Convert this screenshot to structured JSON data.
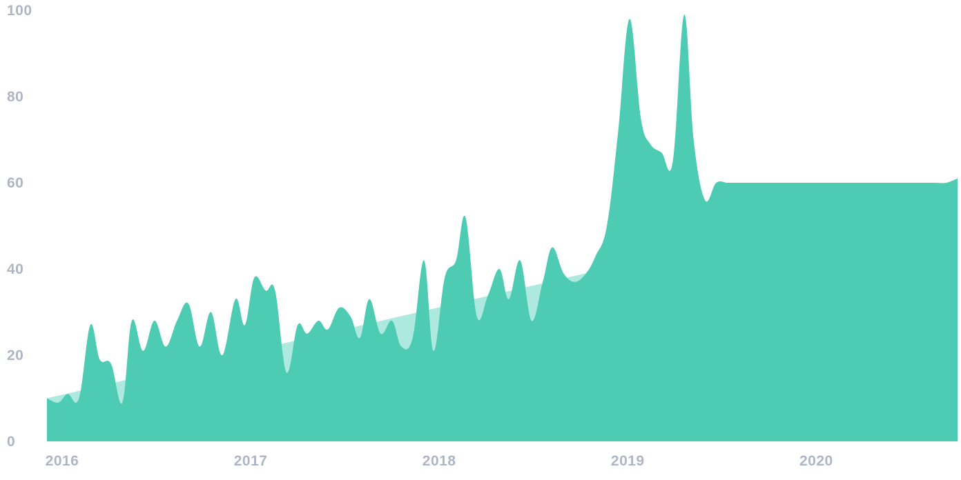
{
  "chart_data": {
    "type": "area",
    "title": "",
    "xlabel": "",
    "ylabel": "",
    "ylim": [
      0,
      100
    ],
    "xlim": [
      2016.0,
      2020.83
    ],
    "grid": false,
    "y_ticks": [
      {
        "value": 0,
        "label": "0"
      },
      {
        "value": 20,
        "label": "20"
      },
      {
        "value": 40,
        "label": "40"
      },
      {
        "value": 60,
        "label": "60"
      },
      {
        "value": 80,
        "label": "80"
      },
      {
        "value": 100,
        "label": "100"
      }
    ],
    "x_ticks": [
      {
        "value": 2016.0,
        "label": "2016"
      },
      {
        "value": 2017.0,
        "label": "2017"
      },
      {
        "value": 2018.0,
        "label": "2018"
      },
      {
        "value": 2019.0,
        "label": "2019"
      },
      {
        "value": 2020.0,
        "label": "2020"
      }
    ],
    "series": [
      {
        "role": "trend",
        "color": "#ade9de",
        "x": [
          2016.0,
          2020.83
        ],
        "values": [
          10,
          59
        ]
      },
      {
        "role": "interest",
        "color": "#4ecbb3",
        "x": [
          2016.0,
          2016.06,
          2016.11,
          2016.17,
          2016.23,
          2016.28,
          2016.34,
          2016.4,
          2016.45,
          2016.51,
          2016.57,
          2016.63,
          2016.69,
          2016.75,
          2016.81,
          2016.87,
          2016.93,
          2017.0,
          2017.05,
          2017.1,
          2017.16,
          2017.21,
          2017.27,
          2017.33,
          2017.38,
          2017.44,
          2017.49,
          2017.55,
          2017.61,
          2017.66,
          2017.71,
          2017.77,
          2017.83,
          2017.88,
          2017.94,
          2018.0,
          2018.05,
          2018.11,
          2018.17,
          2018.22,
          2018.28,
          2018.34,
          2018.4,
          2018.45,
          2018.51,
          2018.57,
          2018.63,
          2018.68,
          2018.74,
          2018.8,
          2018.86,
          2018.91,
          2018.97,
          2019.03,
          2019.09,
          2019.15,
          2019.2,
          2019.26,
          2019.32,
          2019.38,
          2019.43,
          2019.49,
          2019.55,
          2019.61,
          2019.67,
          2019.72,
          2019.78,
          2019.84,
          2019.9,
          2019.96,
          2020.02,
          2020.07,
          2020.13,
          2020.19,
          2020.25,
          2020.3,
          2020.36,
          2020.42,
          2020.48,
          2020.54,
          2020.59,
          2020.65,
          2020.71,
          2020.77,
          2020.83
        ],
        "values": [
          10,
          9,
          11,
          10,
          27,
          19,
          18,
          9,
          28,
          21,
          28,
          22,
          28,
          32,
          22,
          30,
          20,
          33,
          27,
          38,
          35,
          35,
          16,
          27,
          25,
          28,
          26,
          31,
          29,
          24,
          33,
          25,
          28,
          22,
          24,
          42,
          21,
          38,
          42,
          52,
          29,
          34,
          40,
          33,
          42,
          28,
          37,
          45,
          39,
          37,
          39,
          43,
          50,
          72,
          98,
          75,
          69,
          67,
          65,
          99,
          70,
          56,
          60,
          60,
          60,
          60,
          60,
          60,
          60,
          60,
          60,
          60,
          60,
          60,
          60,
          60,
          60,
          60,
          60,
          60,
          60,
          60,
          60,
          60,
          61
        ]
      }
    ]
  }
}
